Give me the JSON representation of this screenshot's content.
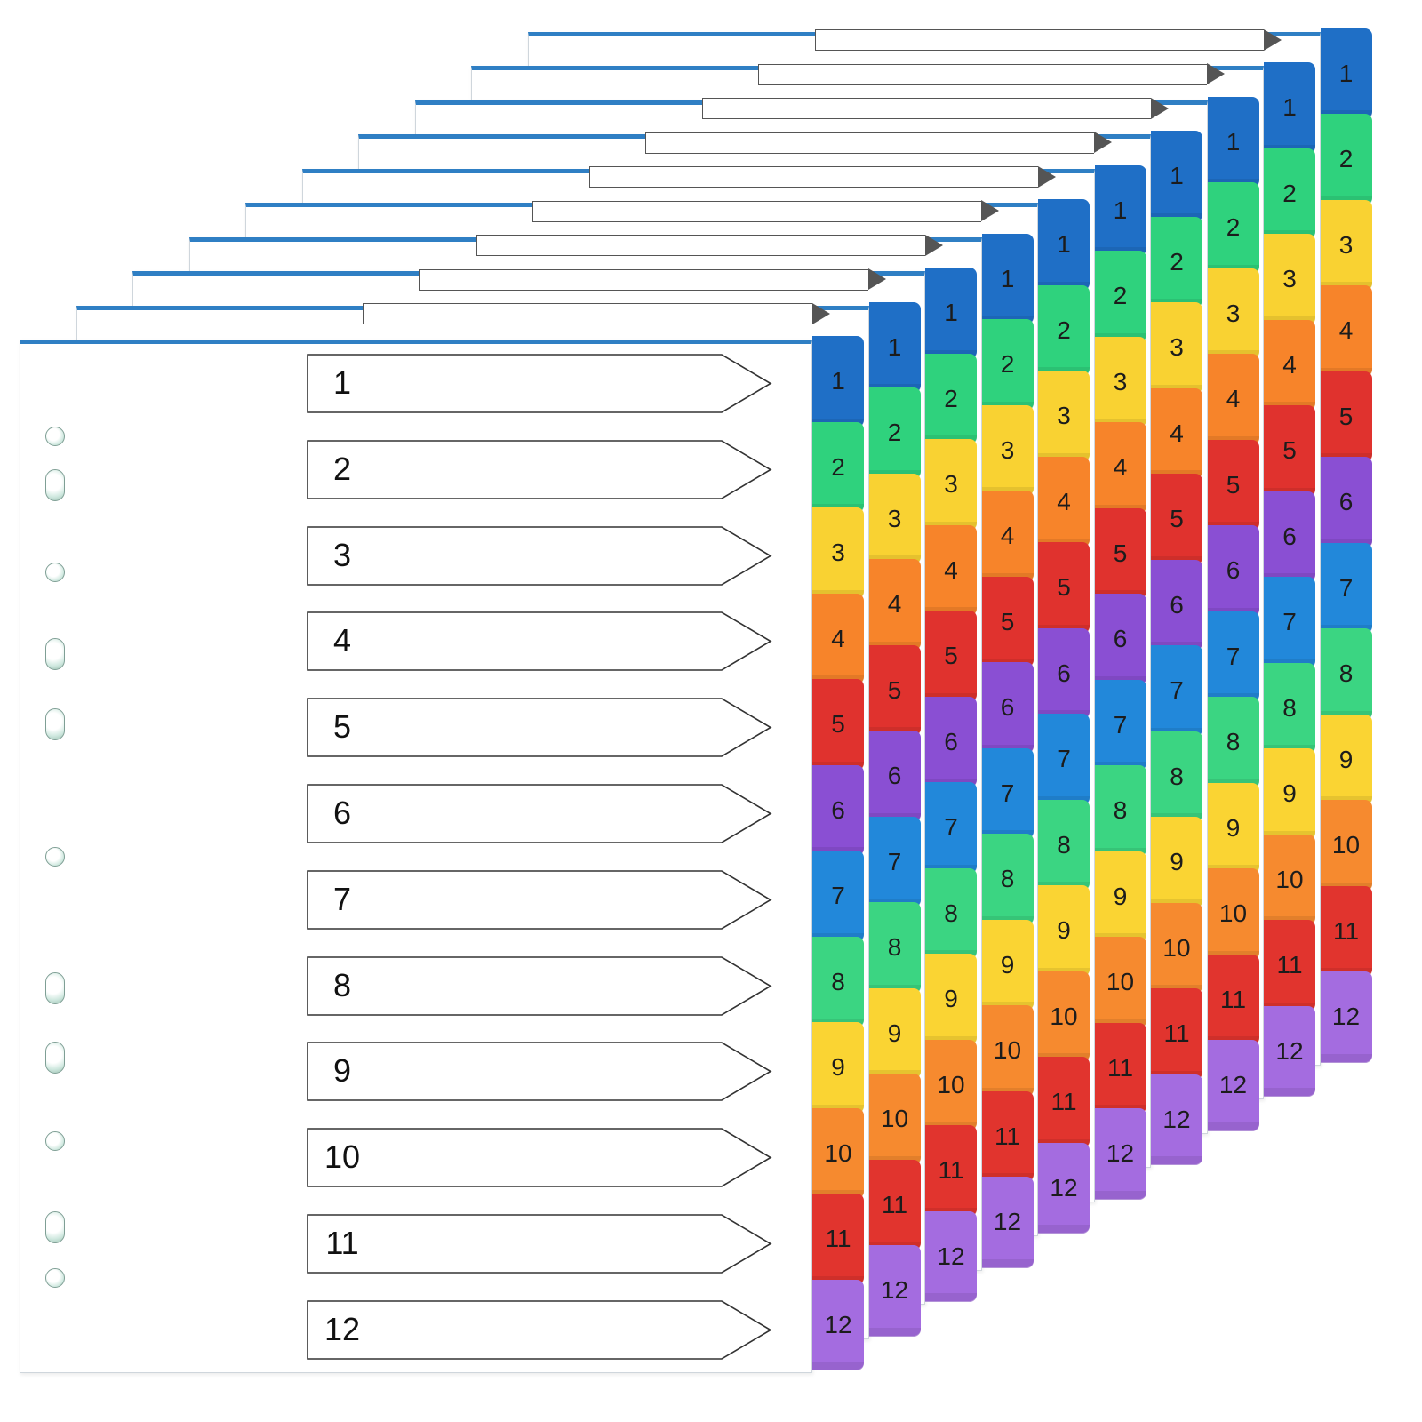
{
  "tab_numbers": [
    "1",
    "2",
    "3",
    "4",
    "5",
    "6",
    "7",
    "8",
    "9",
    "10",
    "11",
    "12"
  ],
  "tab_colors": [
    "#1f6fc6",
    "#2fd27d",
    "#f9d232",
    "#f7842a",
    "#e0322e",
    "#8a4fd3",
    "#2288da",
    "#3bd582",
    "#fad433",
    "#f68a2f",
    "#e1342e",
    "#a46ce0"
  ],
  "front_sheet": {
    "entries": [
      "1",
      "2",
      "3",
      "4",
      "5",
      "6",
      "7",
      "8",
      "9",
      "10",
      "11",
      "12"
    ]
  },
  "hole_types": [
    "round",
    "oval",
    "round",
    "oval",
    "oval",
    "round",
    "oval",
    "oval",
    "round",
    "oval",
    "round"
  ]
}
